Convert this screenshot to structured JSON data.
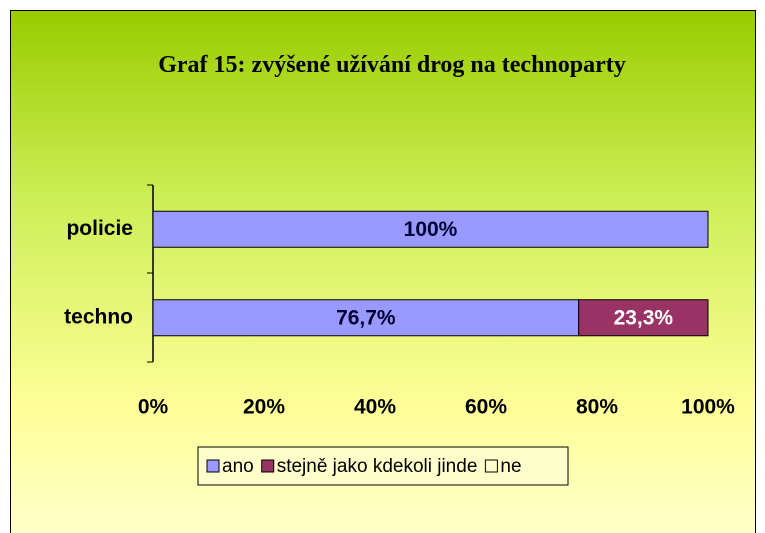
{
  "chart_data": {
    "type": "bar",
    "orientation": "horizontal",
    "stacked": true,
    "title": "Graf 15: zvýšené užívání drog na technoparty",
    "categories": [
      "policie",
      "techno"
    ],
    "series": [
      {
        "name": "ano",
        "color": "#9999ff",
        "values": [
          100,
          76.7
        ],
        "value_labels": [
          "100%",
          "76,7%"
        ]
      },
      {
        "name": "stejně jako kdekoli jinde",
        "color": "#993366",
        "values": [
          0,
          23.3
        ],
        "value_labels": [
          null,
          "23,3%"
        ]
      },
      {
        "name": "ne",
        "color": "#ffffcc",
        "values": [
          0,
          0
        ],
        "value_labels": [
          null,
          null
        ]
      }
    ],
    "xlim": [
      0,
      100
    ],
    "xticks": [
      {
        "value": 0,
        "label": "0%"
      },
      {
        "value": 20,
        "label": "20%"
      },
      {
        "value": 40,
        "label": "40%"
      },
      {
        "value": 60,
        "label": "60%"
      },
      {
        "value": 80,
        "label": "80%"
      },
      {
        "value": 100,
        "label": "100%"
      }
    ],
    "legend": "bottom",
    "grid": false
  }
}
